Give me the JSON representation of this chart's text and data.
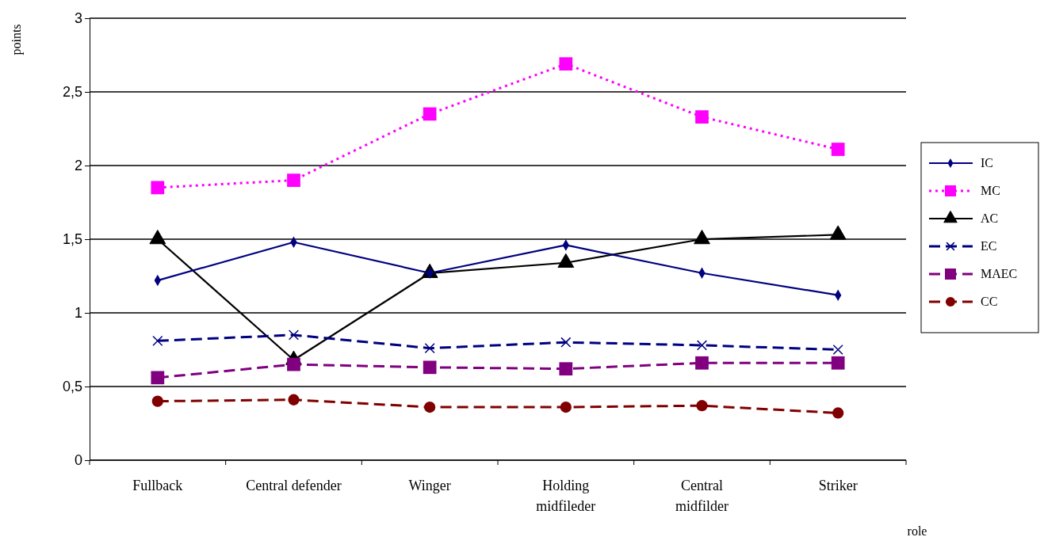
{
  "chart_data": {
    "type": "line",
    "xlabel": "role",
    "ylabel": "points",
    "categories": [
      "Fullback",
      "Central defender",
      "Winger",
      "Holding midfileder",
      "Central midfilder",
      "Striker"
    ],
    "series": [
      {
        "name": "IC",
        "color": "#000080",
        "marker": "diamond",
        "line_style": "solid",
        "values": [
          1.22,
          1.48,
          1.27,
          1.46,
          1.27,
          1.12
        ]
      },
      {
        "name": "MC",
        "color": "#ff00ff",
        "marker": "square",
        "line_style": "dotted",
        "values": [
          1.85,
          1.9,
          2.35,
          2.69,
          2.33,
          2.11
        ]
      },
      {
        "name": "AC",
        "color": "#000000",
        "marker": "triangle",
        "line_style": "solid",
        "values": [
          1.5,
          0.68,
          1.27,
          1.34,
          1.5,
          1.53
        ]
      },
      {
        "name": "EC",
        "color": "#000080",
        "marker": "cross",
        "line_style": "dashed",
        "values": [
          0.81,
          0.85,
          0.76,
          0.8,
          0.78,
          0.75
        ]
      },
      {
        "name": "MAEC",
        "color": "#800080",
        "marker": "square",
        "line_style": "dashed",
        "values": [
          0.56,
          0.65,
          0.63,
          0.62,
          0.66,
          0.66
        ]
      },
      {
        "name": "CC",
        "color": "#800000",
        "marker": "circle",
        "line_style": "dashed",
        "values": [
          0.4,
          0.41,
          0.36,
          0.36,
          0.37,
          0.32
        ]
      }
    ],
    "ylim": [
      0,
      3
    ],
    "yticks": [
      0,
      {
        "value": 0.5,
        "label": "0,5"
      },
      1,
      {
        "value": 1.5,
        "label": "1,5"
      },
      2,
      {
        "value": 2.5,
        "label": "2,5"
      },
      3
    ],
    "grid": "y",
    "legend": "right"
  }
}
